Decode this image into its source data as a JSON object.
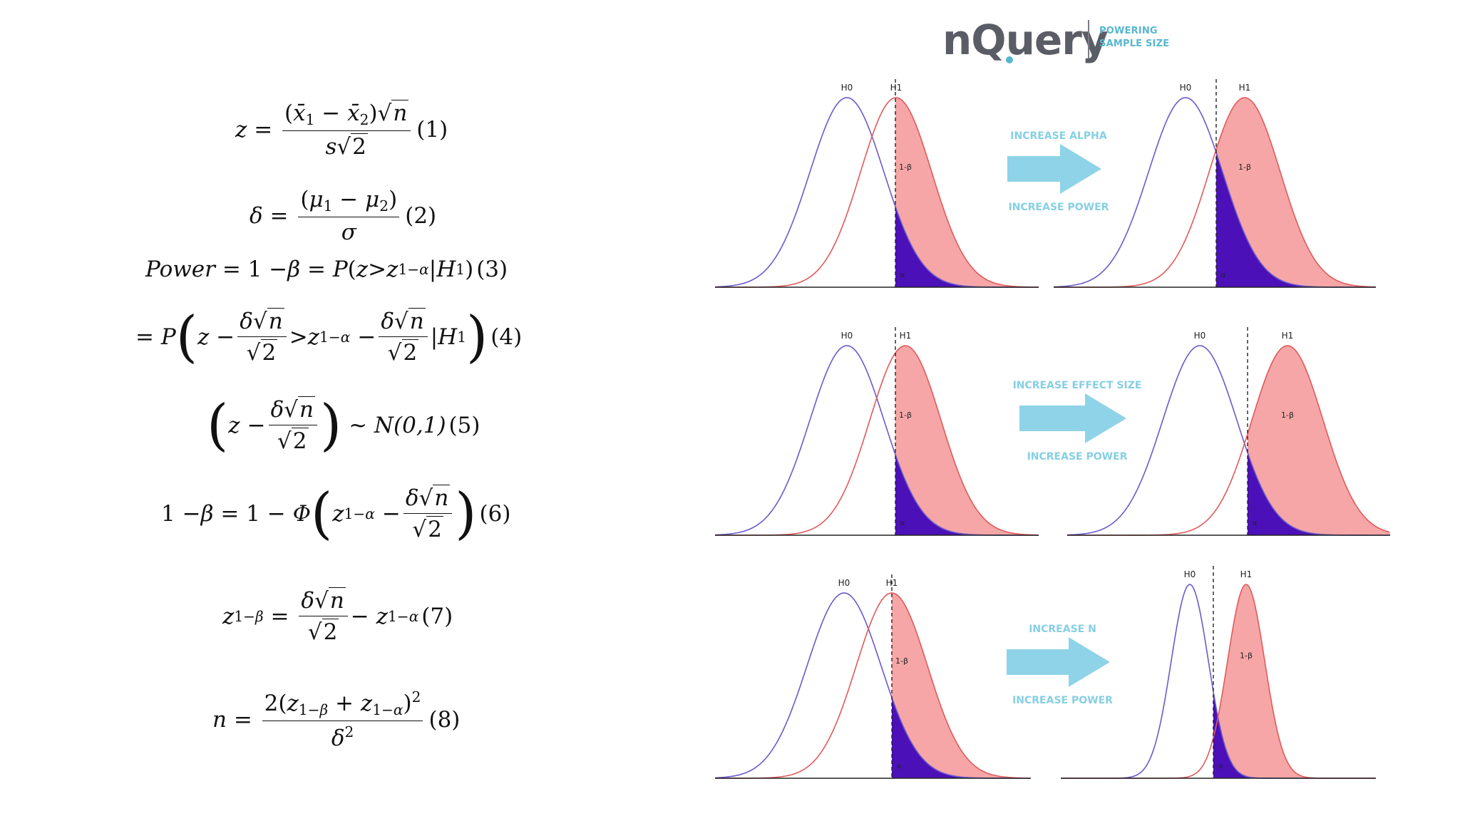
{
  "logo": {
    "wordmark": "nQuery",
    "tagline_line1": "POWERING",
    "tagline_line2": "SAMPLE SIZE",
    "colors": {
      "wordmark": "#5b5d66",
      "accent": "#56b7d0",
      "ring": "#3a94c6"
    }
  },
  "equations": [
    {
      "id": 1,
      "label": "(1)"
    },
    {
      "id": 2,
      "label": "(2)"
    },
    {
      "id": 3,
      "label": "(3)",
      "lhs": "Power"
    },
    {
      "id": 4,
      "label": "(4)"
    },
    {
      "id": 5,
      "label": "(5)",
      "rhs": "N(0,1)"
    },
    {
      "id": 6,
      "label": "(6)"
    },
    {
      "id": 7,
      "label": "(7)"
    },
    {
      "id": 8,
      "label": "(8)"
    }
  ],
  "diagram": {
    "colors": {
      "h0_curve": "#6a5acd",
      "h1_curve": "#e05a5a",
      "h1_fill": "#f6a6a6",
      "alpha_fill": "#4b10b8",
      "arrow": "#8fd3e8",
      "arrow_text": "#86cfe4"
    },
    "curve_labels": {
      "h0": "H0",
      "h1": "H1",
      "power": "1-β",
      "alpha": "α"
    },
    "rows": [
      {
        "row": "alpha",
        "arrow_top": "INCREASE ALPHA",
        "arrow_bottom": "INCREASE POWER"
      },
      {
        "row": "effect",
        "arrow_top": "INCREASE EFFECT SIZE",
        "arrow_bottom": "INCREASE POWER"
      },
      {
        "row": "n",
        "arrow_top": "INCREASE N",
        "arrow_bottom": "INCREASE POWER"
      }
    ]
  }
}
